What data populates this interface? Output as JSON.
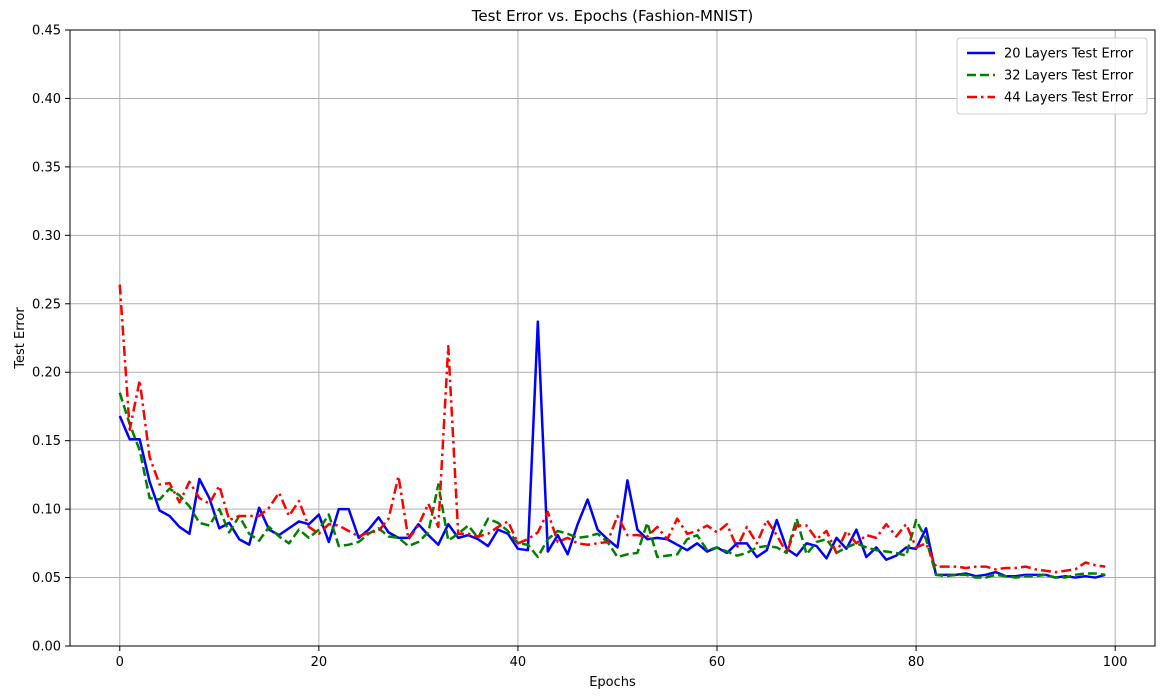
{
  "chart_data": {
    "type": "line",
    "title": "Test Error vs. Epochs (Fashion-MNIST)",
    "xlabel": "Epochs",
    "ylabel": "Test Error",
    "xlim": [
      -5,
      104
    ],
    "ylim": [
      0,
      0.45
    ],
    "xticks": [
      "0",
      "20",
      "40",
      "60",
      "80",
      "100"
    ],
    "yticks": [
      "0.00",
      "0.05",
      "0.10",
      "0.15",
      "0.20",
      "0.25",
      "0.30",
      "0.35",
      "0.40",
      "0.45"
    ],
    "grid": true,
    "legend_position": "top-right",
    "series": [
      {
        "name": "20 Layers Test Error",
        "color": "#0000ff",
        "dash": "solid",
        "values": [
          0.168,
          0.151,
          0.151,
          0.12,
          0.099,
          0.095,
          0.087,
          0.082,
          0.122,
          0.108,
          0.086,
          0.09,
          0.078,
          0.074,
          0.101,
          0.085,
          0.081,
          0.086,
          0.091,
          0.089,
          0.096,
          0.076,
          0.1,
          0.1,
          0.079,
          0.085,
          0.094,
          0.083,
          0.079,
          0.079,
          0.089,
          0.081,
          0.074,
          0.089,
          0.079,
          0.081,
          0.078,
          0.073,
          0.085,
          0.082,
          0.071,
          0.07,
          0.237,
          0.069,
          0.081,
          0.067,
          0.089,
          0.107,
          0.085,
          0.078,
          0.072,
          0.121,
          0.085,
          0.078,
          0.079,
          0.078,
          0.074,
          0.07,
          0.075,
          0.069,
          0.072,
          0.068,
          0.075,
          0.075,
          0.065,
          0.07,
          0.092,
          0.071,
          0.066,
          0.075,
          0.073,
          0.064,
          0.079,
          0.071,
          0.085,
          0.065,
          0.072,
          0.063,
          0.066,
          0.072,
          0.071,
          0.086,
          0.052,
          0.052,
          0.052,
          0.053,
          0.051,
          0.052,
          0.054,
          0.051,
          0.051,
          0.052,
          0.052,
          0.052,
          0.05,
          0.051,
          0.05,
          0.051,
          0.05,
          0.052
        ]
      },
      {
        "name": "32 Layers Test Error",
        "color": "#008000",
        "dash": "dashed",
        "values": [
          0.185,
          0.162,
          0.143,
          0.108,
          0.107,
          0.115,
          0.11,
          0.102,
          0.09,
          0.088,
          0.1,
          0.083,
          0.095,
          0.082,
          0.077,
          0.087,
          0.08,
          0.075,
          0.085,
          0.079,
          0.085,
          0.096,
          0.073,
          0.074,
          0.076,
          0.082,
          0.086,
          0.08,
          0.079,
          0.073,
          0.076,
          0.083,
          0.118,
          0.077,
          0.082,
          0.088,
          0.079,
          0.093,
          0.09,
          0.084,
          0.075,
          0.074,
          0.065,
          0.078,
          0.084,
          0.082,
          0.079,
          0.08,
          0.082,
          0.076,
          0.065,
          0.067,
          0.068,
          0.09,
          0.065,
          0.066,
          0.067,
          0.078,
          0.081,
          0.07,
          0.072,
          0.069,
          0.066,
          0.068,
          0.072,
          0.073,
          0.072,
          0.068,
          0.093,
          0.067,
          0.076,
          0.078,
          0.068,
          0.072,
          0.075,
          0.072,
          0.07,
          0.069,
          0.068,
          0.066,
          0.092,
          0.078,
          0.052,
          0.051,
          0.052,
          0.052,
          0.05,
          0.05,
          0.052,
          0.051,
          0.05,
          0.051,
          0.051,
          0.052,
          0.05,
          0.05,
          0.052,
          0.053,
          0.053,
          0.052
        ]
      },
      {
        "name": "44 Layers Test Error",
        "color": "#ff0000",
        "dash": "dashdot",
        "values": [
          0.264,
          0.158,
          0.194,
          0.138,
          0.118,
          0.119,
          0.105,
          0.12,
          0.108,
          0.104,
          0.117,
          0.092,
          0.095,
          0.095,
          0.095,
          0.101,
          0.112,
          0.095,
          0.106,
          0.087,
          0.082,
          0.089,
          0.088,
          0.084,
          0.08,
          0.083,
          0.084,
          0.093,
          0.124,
          0.078,
          0.088,
          0.104,
          0.087,
          0.219,
          0.082,
          0.082,
          0.08,
          0.082,
          0.087,
          0.091,
          0.075,
          0.078,
          0.083,
          0.098,
          0.076,
          0.079,
          0.075,
          0.074,
          0.075,
          0.076,
          0.095,
          0.081,
          0.081,
          0.08,
          0.087,
          0.078,
          0.093,
          0.082,
          0.084,
          0.088,
          0.083,
          0.089,
          0.072,
          0.087,
          0.075,
          0.092,
          0.081,
          0.068,
          0.088,
          0.088,
          0.078,
          0.084,
          0.068,
          0.084,
          0.075,
          0.081,
          0.079,
          0.089,
          0.08,
          0.089,
          0.072,
          0.075,
          0.058,
          0.058,
          0.058,
          0.057,
          0.058,
          0.058,
          0.056,
          0.057,
          0.057,
          0.058,
          0.056,
          0.055,
          0.054,
          0.055,
          0.056,
          0.061,
          0.059,
          0.058
        ]
      }
    ]
  }
}
